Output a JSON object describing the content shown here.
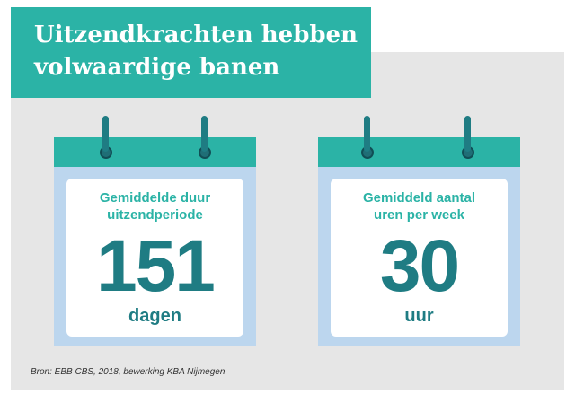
{
  "title": {
    "line1": "Uitzendkrachten hebben",
    "line2": "volwaardige banen"
  },
  "colors": {
    "accent_teal": "#2bb3a6",
    "dark_teal": "#1f7c83",
    "calendar_frame": "#bcd6ee",
    "panel_background": "#e6e6e6"
  },
  "icons": [
    "calendar-icon",
    "calendar-ring-icon"
  ],
  "calendars": [
    {
      "label_line1": "Gemiddelde duur",
      "label_line2": "uitzendperiode",
      "value": "151",
      "unit": "dagen"
    },
    {
      "label_line1": "Gemiddeld aantal",
      "label_line2": "uren per week",
      "value": "30",
      "unit": "uur"
    }
  ],
  "source": "Bron: EBB CBS, 2018, bewerking KBA Nijmegen"
}
